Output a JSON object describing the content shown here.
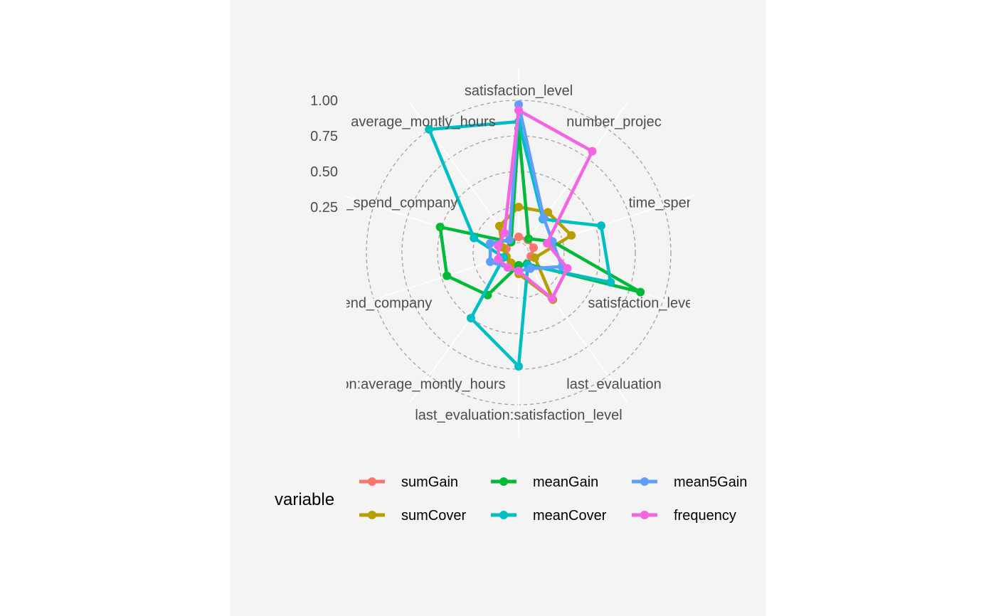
{
  "chart_data": {
    "type": "radar",
    "title": "",
    "axes": [
      "satisfaction_level",
      "number_project",
      "time_spend_company",
      "satisfaction_level:time_spend_company",
      "last_evaluation",
      "last_evaluation:satisfaction_level",
      "number_project:average_montly_hours",
      "time_spend_company",
      "average_montly_hours:time_spend_company",
      "average_montly_hours"
    ],
    "axis_label_texts": [
      "satisfaction_level",
      "number_projec",
      "time_spend_c",
      "satisfaction_level:time_spe",
      "last_evaluation",
      "last_evaluation:satisfaction_level",
      "on:average_montly_hours",
      "ime_spend_company",
      "_hours:time_spend_company",
      "average_montly_hours"
    ],
    "radial_ticks": [
      "0.25",
      "0.50",
      "0.75",
      "1.00"
    ],
    "rlim": [
      0,
      1
    ],
    "series": [
      {
        "name": "sumGain",
        "color": "#F8766D",
        "values": [
          0.04,
          0.04,
          0.04,
          0.02,
          0.04,
          0.02,
          0.02,
          0.04,
          0.02,
          0.02
        ]
      },
      {
        "name": "sumCover",
        "color": "#B79F00",
        "values": [
          0.25,
          0.28,
          0.32,
          0.05,
          0.34,
          0.08,
          0.02,
          0.02,
          0.05,
          0.16
        ]
      },
      {
        "name": "meanGain",
        "color": "#00BA38",
        "values": [
          0.8,
          0.05,
          0.18,
          0.83,
          0.03,
          0.02,
          0.3,
          0.46,
          0.51,
          0.02
        ]
      },
      {
        "name": "meanCover",
        "color": "#00BFC4",
        "values": [
          0.85,
          0.22,
          0.54,
          0.61,
          0.04,
          0.73,
          0.5,
          0.04,
          0.26,
          1.0
        ]
      },
      {
        "name": "mean5Gain",
        "color": "#619CFF",
        "values": [
          0.97,
          0.23,
          0.18,
          0.25,
          0.07,
          0.06,
          0.06,
          0.14,
          0.14,
          0.04
        ]
      },
      {
        "name": "frequency",
        "color": "#F564E3",
        "values": [
          0.93,
          0.81,
          0.14,
          0.29,
          0.33,
          0.06,
          0.06,
          0.08,
          0.08,
          0.1
        ]
      }
    ],
    "legend": {
      "title": "variable",
      "position": "bottom"
    }
  }
}
